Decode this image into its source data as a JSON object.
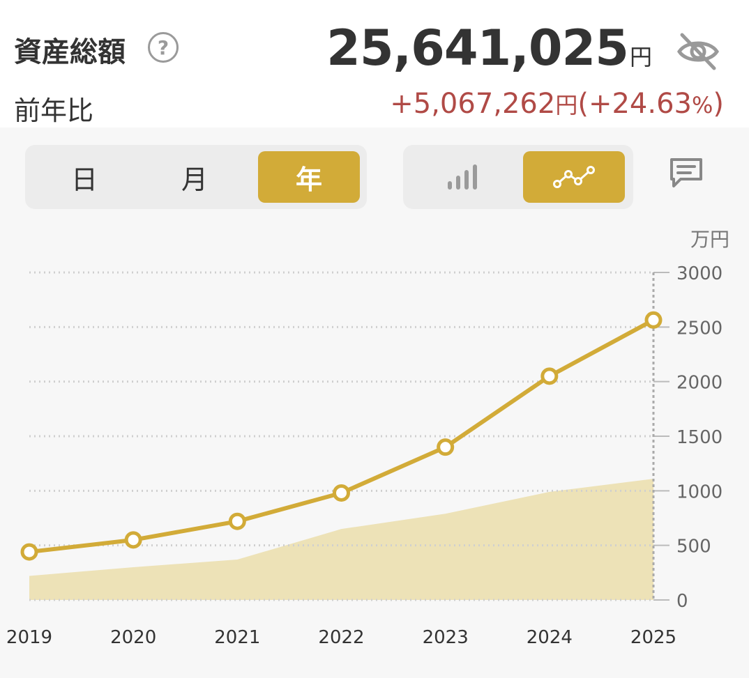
{
  "header": {
    "title": "資産総額",
    "total_value": "25,641,025",
    "total_unit": "円",
    "yoy_label": "前年比",
    "yoy_change": "+5,067,262",
    "yoy_unit": "円",
    "yoy_pct_open": "(+24.63",
    "yoy_pct_sign": "%",
    "yoy_pct_close": ")",
    "help_symbol": "?"
  },
  "period_tabs": [
    {
      "label": "日",
      "active": false
    },
    {
      "label": "月",
      "active": false
    },
    {
      "label": "年",
      "active": true
    }
  ],
  "chart_type_toggle": {
    "options": [
      "bar-chart-icon",
      "line-chart-icon"
    ],
    "active": "line-chart-icon"
  },
  "icons": [
    "help-icon",
    "eye-slash-icon",
    "comment-icon"
  ],
  "colors": {
    "accent": "#d2ab38",
    "area_fill": "#ede2b7",
    "gain_text": "#b04a46"
  },
  "chart_data": {
    "type": "line",
    "unit_label": "万円",
    "categories": [
      "2019",
      "2020",
      "2021",
      "2022",
      "2023",
      "2024",
      "2025"
    ],
    "series": [
      {
        "values": [
          440,
          550,
          720,
          980,
          1400,
          2050,
          2564
        ]
      },
      {
        "type": "area",
        "values": [
          220,
          300,
          370,
          650,
          790,
          990,
          1110
        ]
      }
    ],
    "ylim": [
      0,
      3000
    ],
    "yticks": [
      0,
      500,
      1000,
      1500,
      2000,
      2500,
      3000
    ],
    "grid": true
  }
}
